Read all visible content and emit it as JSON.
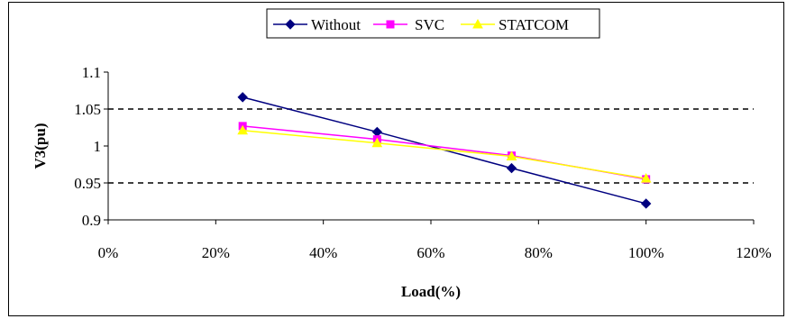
{
  "chart_data": {
    "type": "line",
    "title": "",
    "xlabel": "Load(%)",
    "ylabel": "V3(pu)",
    "x": [
      25,
      50,
      75,
      100
    ],
    "xlim": [
      0,
      120
    ],
    "xticks": [
      0,
      20,
      40,
      60,
      80,
      100,
      120
    ],
    "xtick_labels": [
      "0%",
      "20%",
      "40%",
      "60%",
      "80%",
      "100%",
      "120%"
    ],
    "ylim": [
      0.9,
      1.1
    ],
    "yticks": [
      0.9,
      0.95,
      1,
      1.05,
      1.1
    ],
    "ytick_labels": [
      "0.9",
      "0.95",
      "1",
      "1.05",
      "1.1"
    ],
    "series": [
      {
        "name": "Without",
        "color": "#000080",
        "marker": "diamond",
        "values": [
          1.066,
          1.019,
          0.97,
          0.922
        ]
      },
      {
        "name": "SVC",
        "color": "#ff00ff",
        "marker": "square",
        "values": [
          1.027,
          1.009,
          0.987,
          0.955
        ]
      },
      {
        "name": "STATCOM",
        "color": "#ffff00",
        "marker": "triangle",
        "values": [
          1.021,
          1.004,
          0.986,
          0.956
        ]
      }
    ],
    "reference_lines": [
      {
        "y": 1.05,
        "style": "dashed",
        "color": "#000000"
      },
      {
        "y": 0.95,
        "style": "dashed",
        "color": "#000000"
      }
    ],
    "legend_position": "top-center",
    "grid": false
  }
}
